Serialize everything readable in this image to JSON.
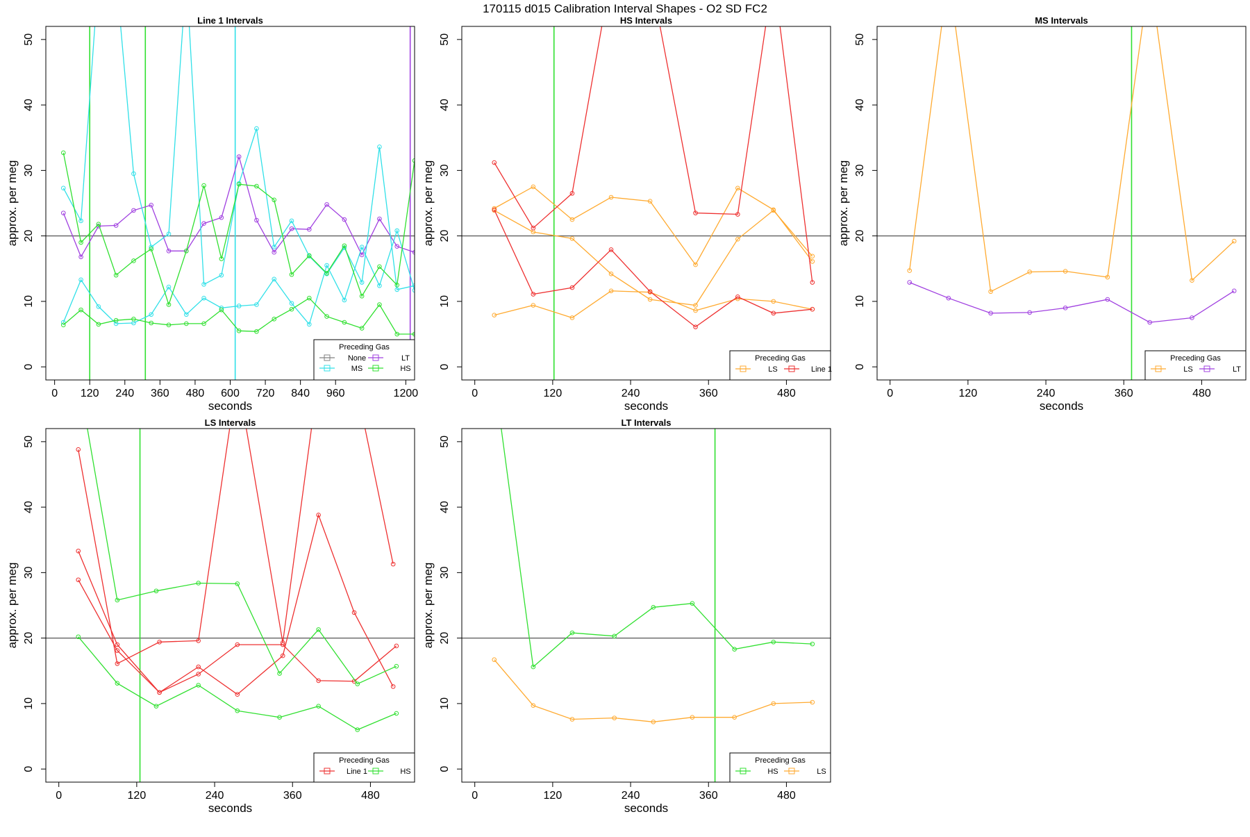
{
  "figure": {
    "title": "170115   d015   Calibration Interval Shapes - O2 SD FC2"
  },
  "colors": {
    "None": "#808080",
    "LT": "#a040e0",
    "MS": "#30e0e8",
    "HS": "#30e030",
    "LS": "#ffaa30",
    "Line 1": "#ee3030",
    "hline": "#555555",
    "vline": "#209020"
  },
  "chart_data": [
    {
      "type": "line",
      "title": "Line 1 Intervals",
      "xlabel": "seconds",
      "ylabel": "approx. per meg",
      "xlim": [
        -30,
        1230
      ],
      "ylim": [
        -2,
        52
      ],
      "x_ticks": [
        0,
        120,
        240,
        360,
        480,
        600,
        720,
        840,
        960,
        1200
      ],
      "y_ticks": [
        0,
        10,
        20,
        30,
        40,
        50
      ],
      "hline": 20,
      "vlines": [
        {
          "x": 120,
          "gas": "HS"
        },
        {
          "x": 310,
          "gas": "HS"
        },
        {
          "x": 617,
          "gas": "MS"
        },
        {
          "x": 1215,
          "gas": "LT"
        }
      ],
      "legend": {
        "title": "Preceding Gas",
        "entries": [
          "None",
          "LT",
          "MS",
          "HS"
        ],
        "ncol": 2,
        "position": "bottom-right"
      },
      "series": [
        {
          "gas": "LT",
          "x": [
            30,
            90,
            150,
            210,
            270,
            330,
            390,
            450,
            510,
            570,
            630,
            690,
            750,
            810,
            870,
            930,
            990,
            1050,
            1110,
            1170,
            1230
          ],
          "y": [
            23.5,
            16.8,
            21.5,
            21.6,
            23.9,
            24.7,
            17.7,
            17.7,
            21.9,
            22.8,
            32.1,
            22.4,
            17.5,
            21.1,
            21.0,
            24.8,
            22.5,
            17.1,
            22.6,
            18.4,
            17.5
          ]
        },
        {
          "gas": "MS",
          "x": [
            30,
            90,
            150,
            210,
            270,
            330,
            390,
            450,
            510,
            570,
            630,
            690,
            750,
            810,
            870,
            930,
            990,
            1050,
            1110,
            1170,
            1230
          ],
          "y": [
            27.3,
            22.3,
            60.0,
            60.0,
            29.5,
            18.3,
            20.3,
            60.0,
            12.6,
            14.0,
            28.0,
            36.4,
            18.3,
            22.3,
            16.9,
            14.2,
            18.2,
            12.9,
            33.6,
            11.8,
            12.4
          ]
        },
        {
          "gas": "MS",
          "x": [
            30,
            90,
            150,
            210,
            270,
            330,
            390,
            450,
            510,
            570,
            630,
            690,
            750,
            810,
            870,
            930,
            990,
            1050,
            1110,
            1170,
            1230
          ],
          "y": [
            6.8,
            13.3,
            9.2,
            6.6,
            6.7,
            8.0,
            12.2,
            8.0,
            10.5,
            9.0,
            9.3,
            9.5,
            13.4,
            9.7,
            6.5,
            15.5,
            10.2,
            18.3,
            12.4,
            20.8,
            11.7
          ]
        },
        {
          "gas": "HS",
          "x": [
            30,
            90,
            150,
            210,
            270,
            330,
            390,
            450,
            510,
            570,
            630,
            690,
            750,
            810,
            870,
            930,
            990,
            1050,
            1110,
            1170,
            1230
          ],
          "y": [
            32.7,
            19.0,
            21.8,
            14.0,
            16.2,
            18.0,
            9.5,
            17.7,
            27.7,
            16.5,
            27.9,
            27.6,
            25.5,
            14.1,
            17.0,
            14.3,
            18.5,
            10.8,
            15.3,
            12.5,
            31.5
          ]
        },
        {
          "gas": "HS",
          "x": [
            30,
            90,
            150,
            210,
            270,
            330,
            390,
            450,
            510,
            570,
            630,
            690,
            750,
            810,
            870,
            930,
            990,
            1050,
            1110,
            1170,
            1230
          ],
          "y": [
            6.4,
            8.7,
            6.5,
            7.1,
            7.3,
            6.7,
            6.4,
            6.6,
            6.6,
            8.7,
            5.5,
            5.4,
            7.3,
            8.8,
            10.5,
            7.7,
            6.8,
            5.9,
            9.5,
            5.0,
            5.0
          ]
        }
      ]
    },
    {
      "type": "line",
      "title": "HS Intervals",
      "xlabel": "seconds",
      "ylabel": "approx. per meg",
      "xlim": [
        -20,
        548
      ],
      "ylim": [
        -2,
        52
      ],
      "x_ticks": [
        0,
        120,
        240,
        360,
        480
      ],
      "y_ticks": [
        0,
        10,
        20,
        30,
        40,
        50
      ],
      "hline": 20,
      "vlines": [
        {
          "x": 122,
          "gas": "HS"
        }
      ],
      "legend": {
        "title": "Preceding Gas",
        "entries": [
          "LS",
          "Line 1"
        ],
        "ncol": 2,
        "position": "bottom-right"
      },
      "series": [
        {
          "gas": "LS",
          "x": [
            30,
            90,
            150,
            210,
            270,
            340,
            405,
            460,
            520
          ],
          "y": [
            24.2,
            27.5,
            22.5,
            25.9,
            25.3,
            15.6,
            27.3,
            24.0,
            16.1
          ]
        },
        {
          "gas": "LS",
          "x": [
            30,
            90,
            150,
            210,
            270,
            340,
            405,
            460,
            520
          ],
          "y": [
            23.9,
            20.6,
            19.6,
            14.2,
            10.3,
            9.4,
            19.5,
            23.9,
            16.9
          ]
        },
        {
          "gas": "LS",
          "x": [
            30,
            90,
            150,
            210,
            270,
            340,
            405,
            460,
            520
          ],
          "y": [
            7.9,
            9.4,
            7.5,
            11.6,
            11.4,
            8.6,
            10.4,
            10.0,
            8.8
          ]
        },
        {
          "gas": "Line 1",
          "x": [
            30,
            90,
            150,
            210,
            270,
            340,
            405,
            460,
            520
          ],
          "y": [
            31.2,
            21.2,
            26.5,
            60.0,
            60.0,
            23.5,
            23.3,
            60.0,
            12.9
          ]
        },
        {
          "gas": "Line 1",
          "x": [
            30,
            90,
            150,
            210,
            270,
            340,
            405,
            460,
            520
          ],
          "y": [
            24.0,
            11.1,
            12.1,
            17.9,
            11.5,
            6.1,
            10.7,
            8.2,
            8.8
          ]
        }
      ]
    },
    {
      "type": "line",
      "title": "MS Intervals",
      "xlabel": "seconds",
      "ylabel": "approx. per meg",
      "xlim": [
        -20,
        548
      ],
      "ylim": [
        -2,
        52
      ],
      "x_ticks": [
        0,
        120,
        240,
        360,
        480
      ],
      "y_ticks": [
        0,
        10,
        20,
        30,
        40,
        50
      ],
      "hline": 20,
      "vlines": [
        {
          "x": 372,
          "gas": "HS"
        }
      ],
      "legend": {
        "title": "Preceding Gas",
        "entries": [
          "LS",
          "LT"
        ],
        "ncol": 2,
        "position": "bottom-right"
      },
      "series": [
        {
          "gas": "LS",
          "x": [
            30,
            90,
            155,
            215,
            270,
            335,
            400,
            465,
            530
          ],
          "y": [
            14.7,
            60.0,
            11.5,
            14.5,
            14.6,
            13.7,
            60.0,
            13.2,
            19.2
          ]
        },
        {
          "gas": "LT",
          "x": [
            30,
            90,
            155,
            215,
            270,
            335,
            400,
            465,
            530
          ],
          "y": [
            12.9,
            10.5,
            8.2,
            8.3,
            9.0,
            10.3,
            6.8,
            7.5,
            11.6
          ]
        }
      ]
    },
    {
      "type": "line",
      "title": "LS Intervals",
      "xlabel": "seconds",
      "ylabel": "approx. per meg",
      "xlim": [
        -20,
        548
      ],
      "ylim": [
        -2,
        52
      ],
      "x_ticks": [
        0,
        120,
        240,
        360,
        480
      ],
      "y_ticks": [
        0,
        10,
        20,
        30,
        40,
        50
      ],
      "hline": 20,
      "vlines": [
        {
          "x": 125,
          "gas": "HS"
        }
      ],
      "legend": {
        "title": "Preceding Gas",
        "entries": [
          "Line 1",
          "HS"
        ],
        "ncol": 2,
        "position": "bottom-right"
      },
      "series": [
        {
          "gas": "Line 1",
          "x": [
            30,
            90,
            155,
            215,
            275,
            345,
            400,
            455,
            515
          ],
          "y": [
            48.8,
            16.1,
            19.4,
            19.6,
            60.0,
            19.3,
            60.0,
            60.0,
            31.3
          ]
        },
        {
          "gas": "Line 1",
          "x": [
            30,
            90,
            155,
            215,
            275,
            345,
            400,
            455,
            515
          ],
          "y": [
            33.3,
            19.0,
            11.7,
            15.6,
            11.4,
            17.3,
            38.8,
            23.9,
            12.6
          ]
        },
        {
          "gas": "Line 1",
          "x": [
            30,
            90,
            155,
            215,
            275,
            345,
            400,
            455,
            520
          ],
          "y": [
            28.9,
            18.1,
            11.7,
            14.5,
            19.0,
            19.0,
            13.5,
            13.4,
            18.8
          ]
        },
        {
          "gas": "HS",
          "x": [
            30,
            90,
            150,
            215,
            275,
            340,
            400,
            460,
            520
          ],
          "y": [
            60.0,
            25.8,
            27.2,
            28.4,
            28.3,
            14.6,
            21.3,
            13.0,
            15.7
          ]
        },
        {
          "gas": "HS",
          "x": [
            30,
            90,
            150,
            215,
            275,
            340,
            400,
            460,
            520
          ],
          "y": [
            20.2,
            13.1,
            9.6,
            12.8,
            8.9,
            7.9,
            9.6,
            6.0,
            8.5
          ]
        }
      ]
    },
    {
      "type": "line",
      "title": "LT Intervals",
      "xlabel": "seconds",
      "ylabel": "approx. per meg",
      "xlim": [
        -20,
        548
      ],
      "ylim": [
        -2,
        52
      ],
      "x_ticks": [
        0,
        120,
        240,
        360,
        480
      ],
      "y_ticks": [
        0,
        10,
        20,
        30,
        40,
        50
      ],
      "hline": 20,
      "vlines": [
        {
          "x": 370,
          "gas": "HS"
        }
      ],
      "legend": {
        "title": "Preceding Gas",
        "entries": [
          "HS",
          "LS"
        ],
        "ncol": 2,
        "position": "bottom-right"
      },
      "series": [
        {
          "gas": "HS",
          "x": [
            30,
            90,
            150,
            215,
            275,
            335,
            400,
            460,
            520
          ],
          "y": [
            60.0,
            15.6,
            20.8,
            20.3,
            24.7,
            25.3,
            18.3,
            19.4,
            19.1
          ]
        },
        {
          "gas": "LS",
          "x": [
            30,
            90,
            150,
            215,
            275,
            335,
            400,
            460,
            520
          ],
          "y": [
            16.7,
            9.7,
            7.6,
            7.8,
            7.2,
            7.9,
            7.9,
            10.0,
            10.2
          ]
        }
      ]
    }
  ]
}
